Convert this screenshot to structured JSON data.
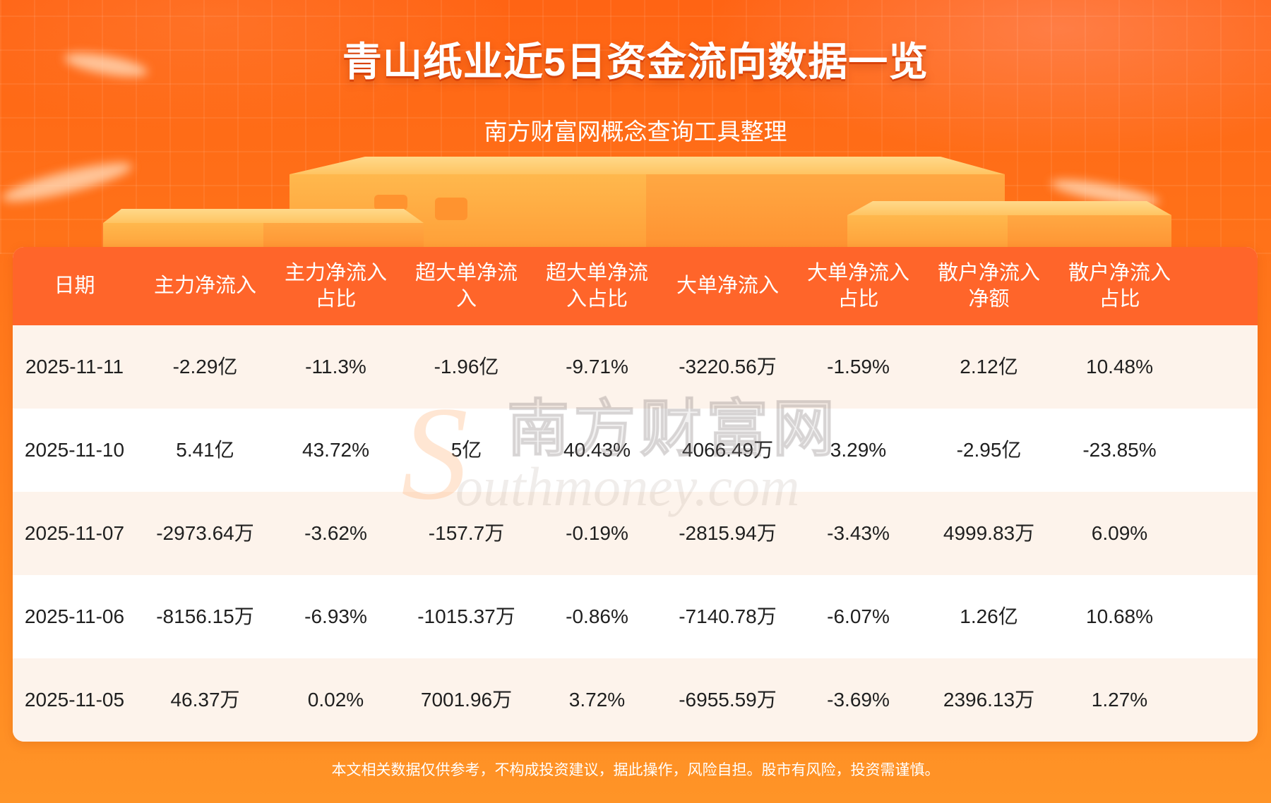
{
  "header": {
    "title": "青山纸业近5日资金流向数据一览",
    "subtitle": "南方财富网概念查询工具整理"
  },
  "watermark": {
    "cn": "南方财富网",
    "s_letter": "S",
    "en": "outhmoney.com"
  },
  "footer": "本文相关数据仅供参考，不构成投资建议，据此操作，风险自担。股市有风险，投资需谨慎。",
  "colors": {
    "page_background": "#ff7f1d",
    "table_header": "#ff652a",
    "row_highlight": "#fdf3eb",
    "cell_text": "#1f1f1f"
  },
  "chart_data": {
    "type": "table",
    "columns": [
      "日期",
      "主力净流入",
      "主力净流入占比",
      "超大单净流入",
      "超大单净流入占比",
      "大单净流入",
      "大单净流入占比",
      "散户净流入净额",
      "散户净流入占比"
    ],
    "rows": [
      [
        "2025-11-11",
        "-2.29亿",
        "-11.3%",
        "-1.96亿",
        "-9.71%",
        "-3220.56万",
        "-1.59%",
        "2.12亿",
        "10.48%"
      ],
      [
        "2025-11-10",
        "5.41亿",
        "43.72%",
        "5亿",
        "40.43%",
        "4066.49万",
        "3.29%",
        "-2.95亿",
        "-23.85%"
      ],
      [
        "2025-11-07",
        "-2973.64万",
        "-3.62%",
        "-157.7万",
        "-0.19%",
        "-2815.94万",
        "-3.43%",
        "4999.83万",
        "6.09%"
      ],
      [
        "2025-11-06",
        "-8156.15万",
        "-6.93%",
        "-1015.37万",
        "-0.86%",
        "-7140.78万",
        "-6.07%",
        "1.26亿",
        "10.68%"
      ],
      [
        "2025-11-05",
        "46.37万",
        "0.02%",
        "7001.96万",
        "3.72%",
        "-6955.59万",
        "-3.69%",
        "2396.13万",
        "1.27%"
      ]
    ]
  }
}
